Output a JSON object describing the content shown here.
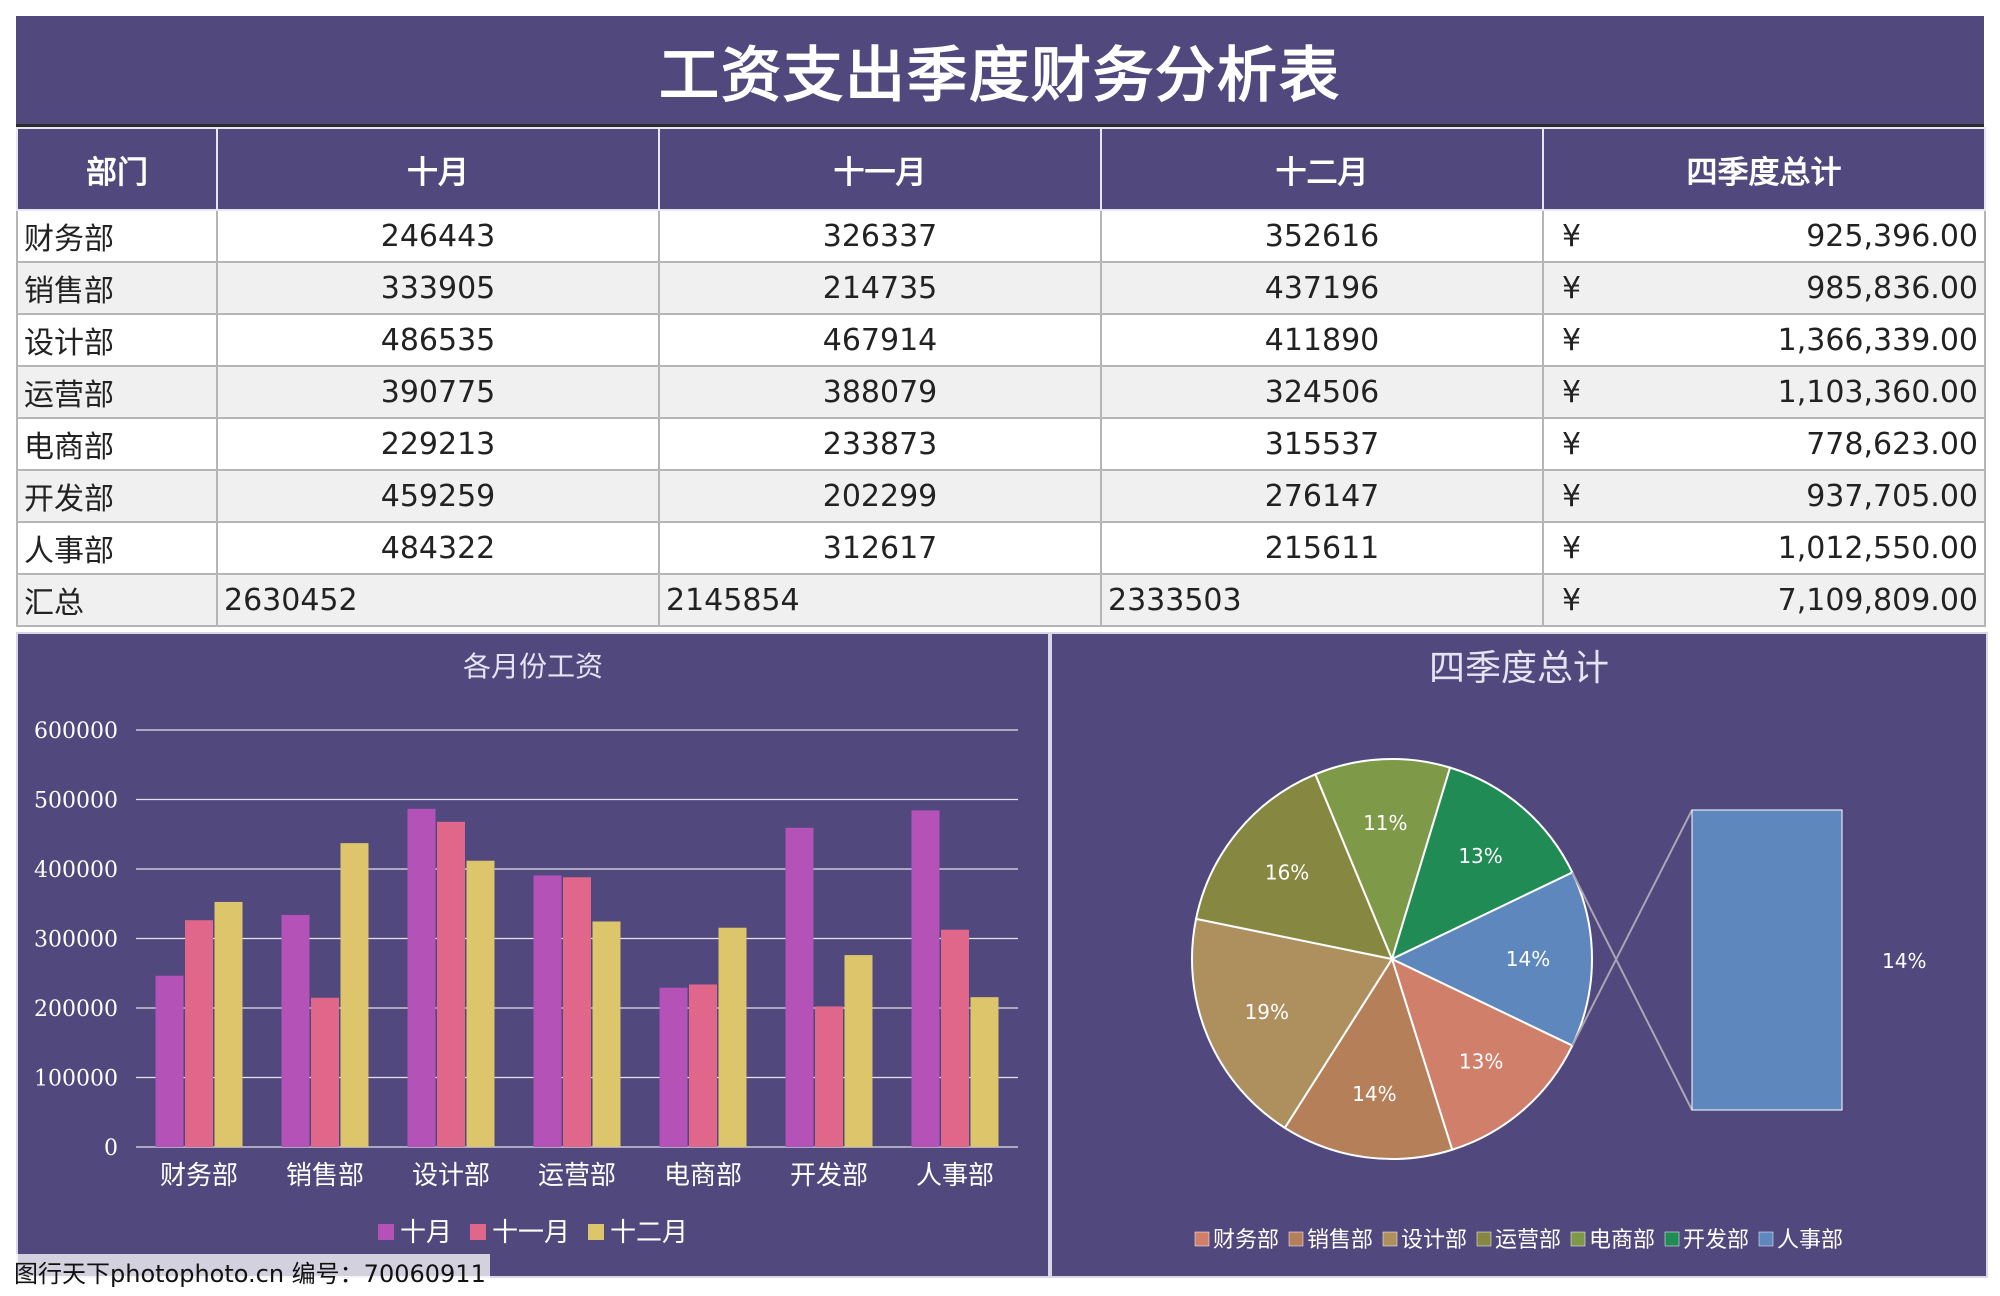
{
  "title": "工资支出季度财务分析表",
  "table": {
    "headers": [
      "部门",
      "十月",
      "十一月",
      "十二月",
      "四季度总计"
    ],
    "currency_symbol": "¥",
    "rows": [
      {
        "dept": "财务部",
        "oct": "246443",
        "nov": "326337",
        "dec": "352616",
        "total": "925,396.00"
      },
      {
        "dept": "销售部",
        "oct": "333905",
        "nov": "214735",
        "dec": "437196",
        "total": "985,836.00"
      },
      {
        "dept": "设计部",
        "oct": "486535",
        "nov": "467914",
        "dec": "411890",
        "total": "1,366,339.00"
      },
      {
        "dept": "运营部",
        "oct": "390775",
        "nov": "388079",
        "dec": "324506",
        "total": "1,103,360.00"
      },
      {
        "dept": "电商部",
        "oct": "229213",
        "nov": "233873",
        "dec": "315537",
        "total": "778,623.00"
      },
      {
        "dept": "开发部",
        "oct": "459259",
        "nov": "202299",
        "dec": "276147",
        "total": "937,705.00"
      },
      {
        "dept": "人事部",
        "oct": "484322",
        "nov": "312617",
        "dec": "215611",
        "total": "1,012,550.00"
      }
    ],
    "summary": {
      "dept": "汇总",
      "oct": "2630452",
      "nov": "2145854",
      "dec": "2333503",
      "total": "7,109,809.00"
    }
  },
  "chart_data": [
    {
      "type": "bar",
      "title": "各月份工资",
      "categories": [
        "财务部",
        "销售部",
        "设计部",
        "运营部",
        "电商部",
        "开发部",
        "人事部"
      ],
      "series": [
        {
          "name": "十月",
          "color": "#b452b8",
          "values": [
            246443,
            333905,
            486535,
            390775,
            229213,
            459259,
            484322
          ]
        },
        {
          "name": "十一月",
          "color": "#e0668a",
          "values": [
            326337,
            214735,
            467914,
            388079,
            233873,
            202299,
            312617
          ]
        },
        {
          "name": "十二月",
          "color": "#dcc56a",
          "values": [
            352616,
            437196,
            411890,
            324506,
            315537,
            276147,
            215611
          ]
        }
      ],
      "ylim": [
        0,
        600000
      ],
      "yticks": [
        0,
        100000,
        200000,
        300000,
        400000,
        500000,
        600000
      ],
      "grid": true,
      "legend": "bottom"
    },
    {
      "type": "pie",
      "subtype": "pie-of-bar",
      "title": "四季度总计",
      "slices": [
        {
          "label": "财务部",
          "value": 925396,
          "pct": "13%",
          "color": "#d07f6a"
        },
        {
          "label": "销售部",
          "value": 985836,
          "pct": "14%",
          "color": "#b57f5a"
        },
        {
          "label": "设计部",
          "value": 1366339,
          "pct": "19%",
          "color": "#ae8f5e"
        },
        {
          "label": "运营部",
          "value": 1103360,
          "pct": "16%",
          "color": "#868740"
        },
        {
          "label": "电商部",
          "value": 778623,
          "pct": "11%",
          "color": "#7e9a48"
        },
        {
          "label": "开发部",
          "value": 937705,
          "pct": "13%",
          "color": "#218b55"
        },
        {
          "label": "人事部",
          "value": 1012550,
          "pct": "14%",
          "color": "#5e87bd"
        }
      ],
      "bar_label": "14%",
      "legend": "bottom"
    }
  ],
  "watermark": "图行天下photophoto.cn 编号：70060911"
}
